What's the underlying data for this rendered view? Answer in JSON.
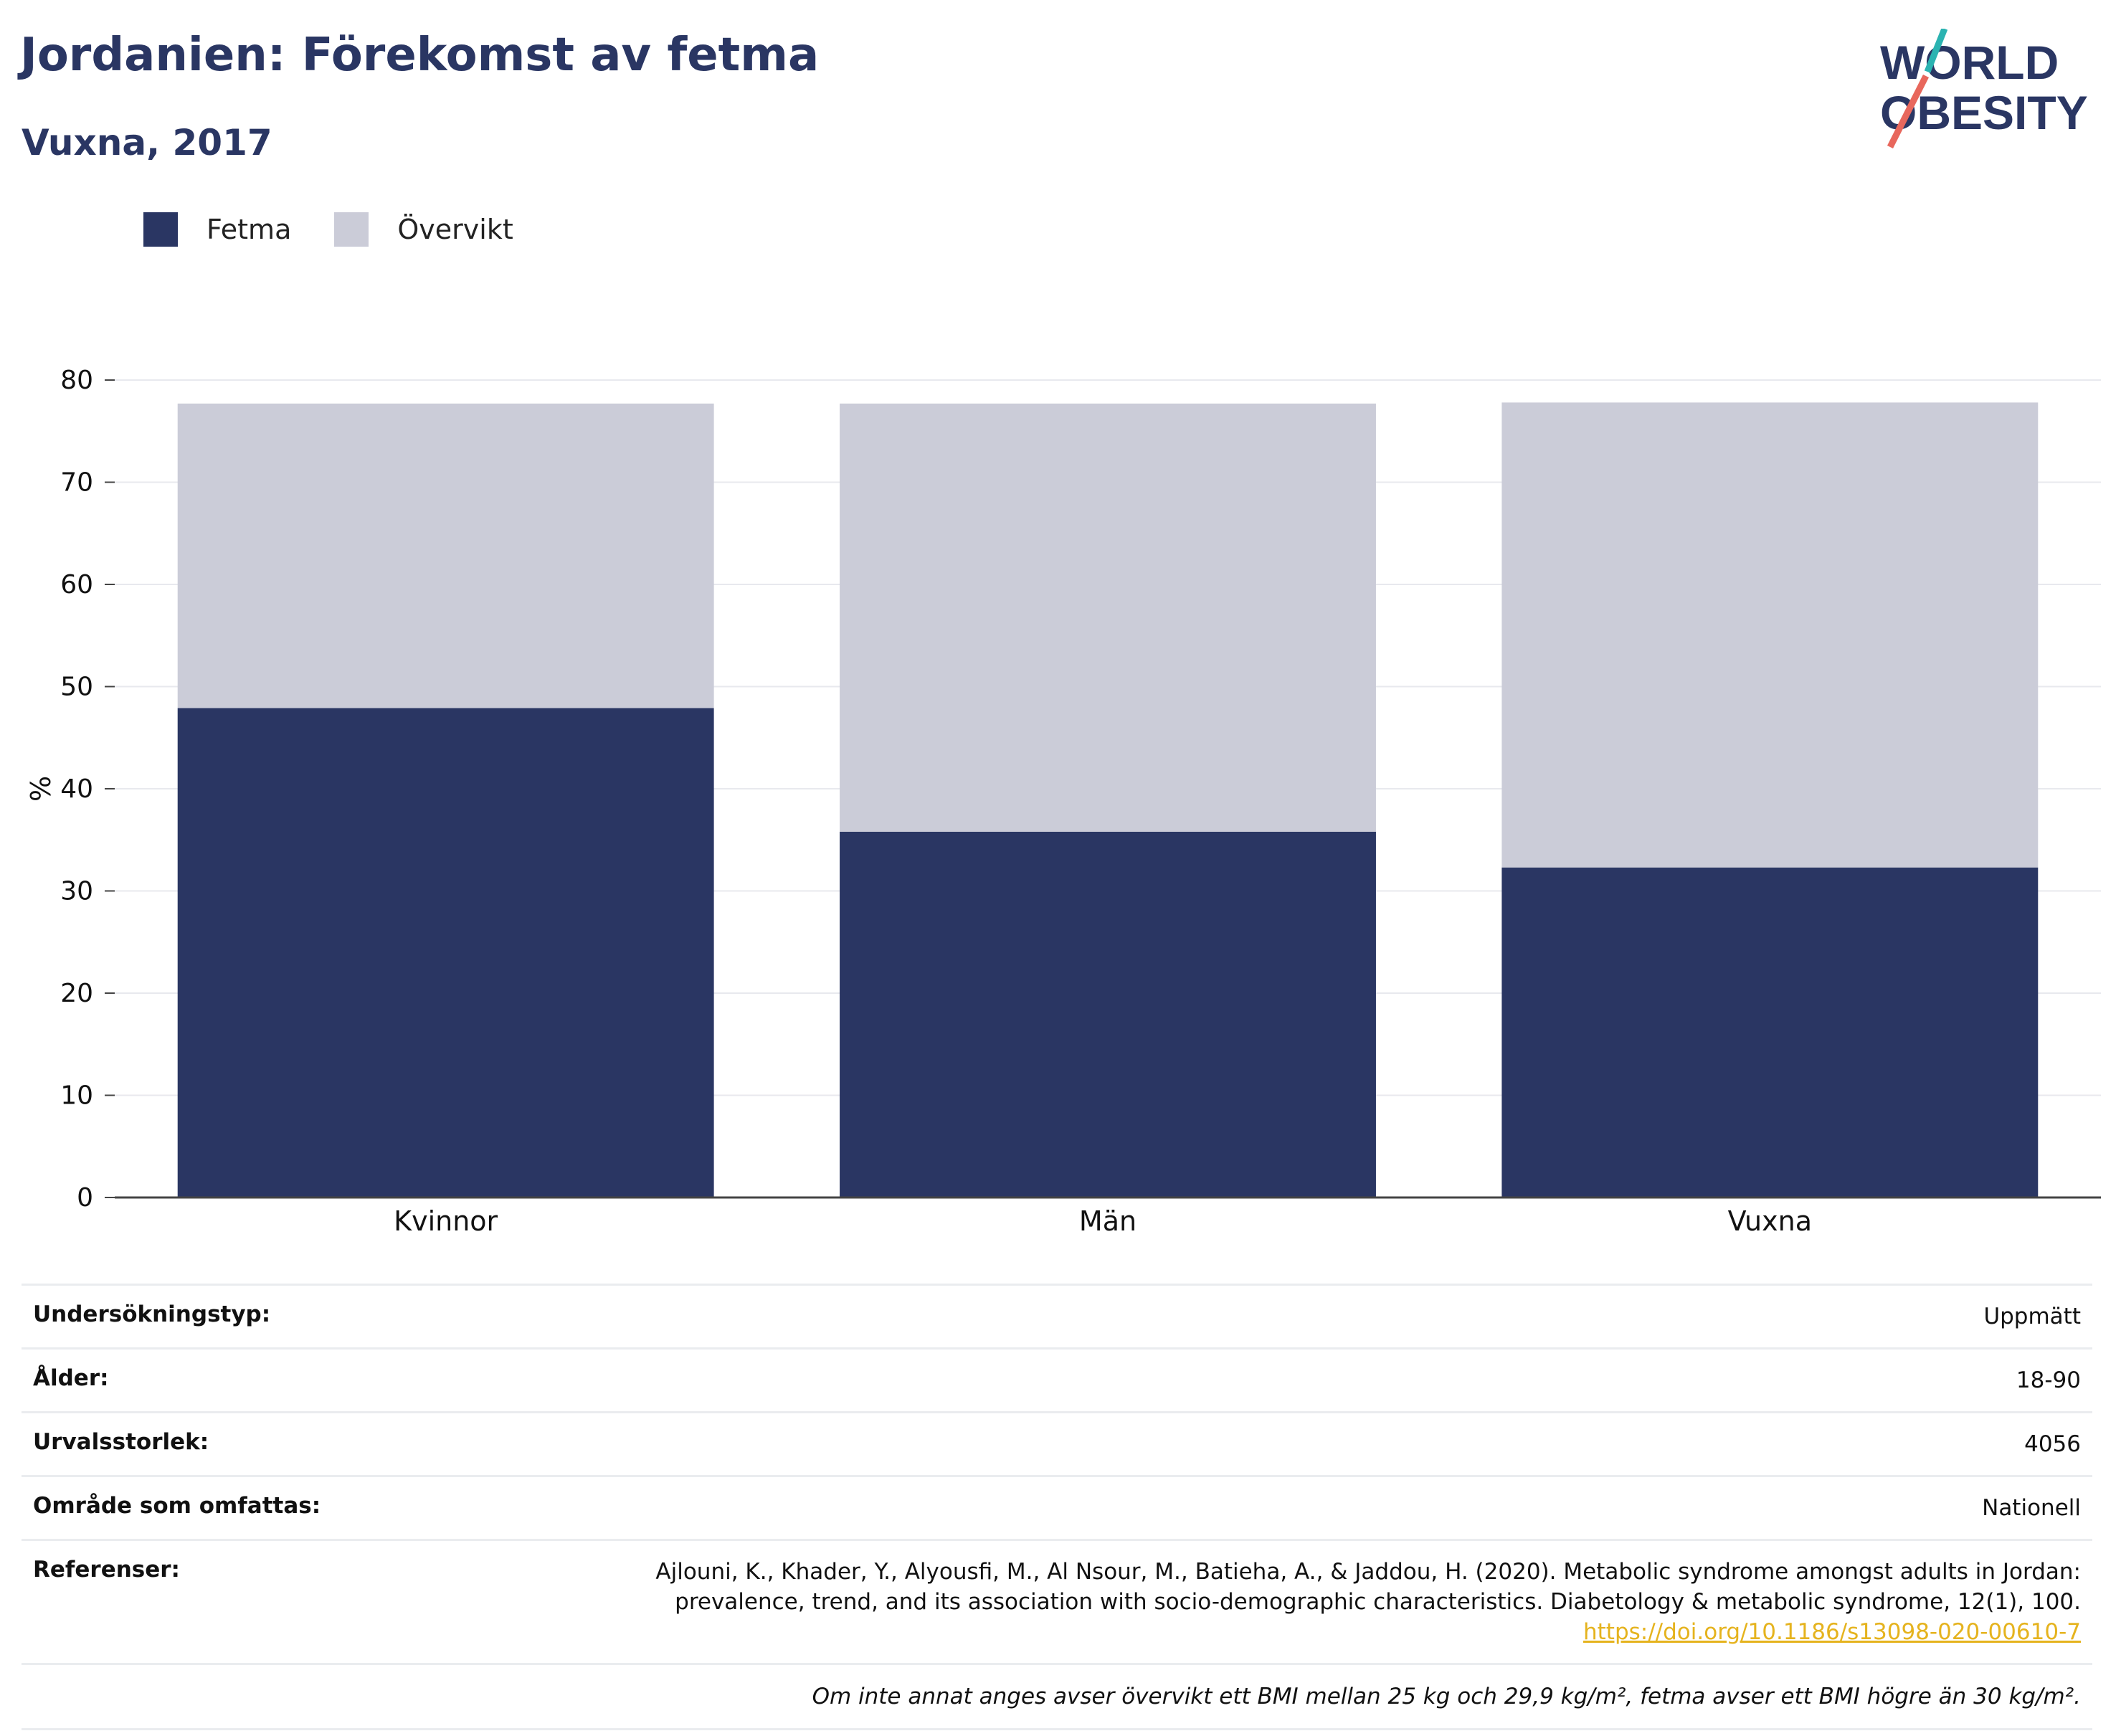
{
  "header": {
    "title": "Jordanien: Förekomst av fetma",
    "subtitle": "Vuxna, 2017"
  },
  "logo": {
    "line1": "WORLD",
    "line2": "OBESITY"
  },
  "colors": {
    "fetma": "#2a3663",
    "overvikt": "#cbccd8",
    "title": "#2a3663",
    "link": "#e5b31e",
    "slash_teal": "#2bb3b1",
    "slash_red": "#e8675c"
  },
  "legend": [
    {
      "label": "Fetma",
      "color": "#2a3663"
    },
    {
      "label": "Övervikt",
      "color": "#cbccd8"
    }
  ],
  "chart_data": {
    "type": "bar",
    "stacked": true,
    "categories": [
      "Kvinnor",
      "Män",
      "Vuxna"
    ],
    "series": [
      {
        "name": "Fetma",
        "values": [
          47.9,
          35.8,
          32.3
        ]
      },
      {
        "name": "Övervikt",
        "values": [
          29.8,
          41.9,
          45.5
        ]
      }
    ],
    "ylabel": "%",
    "ylim": [
      0,
      80
    ],
    "yticks": [
      0,
      10,
      20,
      30,
      40,
      50,
      60,
      70,
      80
    ],
    "grid": true,
    "legend_position": "top-left"
  },
  "info": {
    "survey_type_label": "Undersökningstyp:",
    "survey_type_value": "Uppmätt",
    "age_label": "Ålder:",
    "age_value": "18-90",
    "sample_label": "Urvalsstorlek:",
    "sample_value": "4056",
    "area_label": "Område som omfattas:",
    "area_value": "Nationell",
    "ref_label": "Referenser:",
    "ref_line1": "Ajlouni, K., Khader, Y., Alyousfi, M., Al Nsour, M., Batieha, A., & Jaddou, H. (2020). Metabolic syndrome amongst adults in Jordan:",
    "ref_line2": "prevalence, trend, and its association with socio-demographic characteristics. Diabetology & metabolic syndrome, 12(1), 100.",
    "ref_link": "https://doi.org/10.1186/s13098-020-00610-7",
    "note": "Om inte annat anges avser övervikt ett BMI mellan 25 kg och 29,9 kg/m², fetma avser ett BMI högre än 30 kg/m²."
  }
}
